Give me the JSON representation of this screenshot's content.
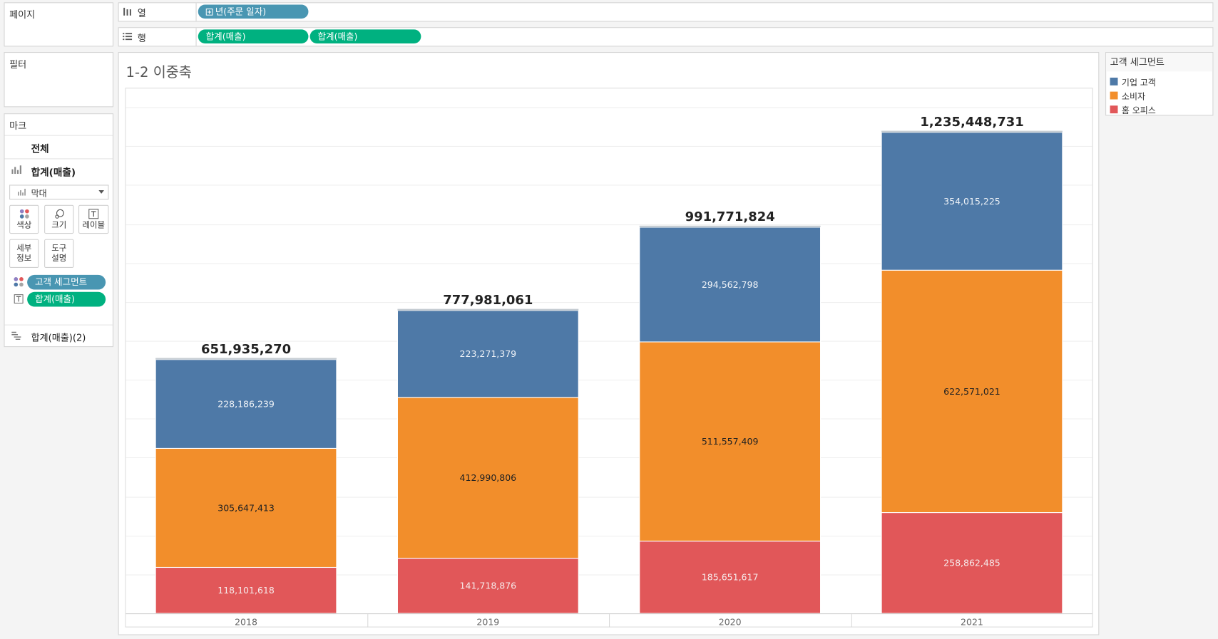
{
  "shelves": {
    "columns": {
      "label": "열",
      "icon": "columns-icon",
      "pills": [
        {
          "label": "년(주문 일자)",
          "icon": "plus-box-icon",
          "color": "#4996b2"
        }
      ]
    },
    "rows": {
      "label": "행",
      "icon": "rows-icon",
      "pills": [
        {
          "label": "합계(매출)",
          "color": "#00b180"
        },
        {
          "label": "합계(매출)",
          "color": "#00b180"
        }
      ]
    }
  },
  "pages_card": {
    "title": "페이지"
  },
  "filters_card": {
    "title": "필터"
  },
  "marks_card": {
    "title": "마크",
    "all_tab": "전체",
    "measure_tab": "합계(매출)",
    "mark_type": "막대",
    "buttons": [
      {
        "label": "색상",
        "icon": "color-icon"
      },
      {
        "label": "크기",
        "icon": "size-icon"
      },
      {
        "label": "레이블",
        "icon": "label-icon"
      },
      {
        "label": "세부 정보"
      },
      {
        "label": "도구 설명"
      }
    ],
    "fields": [
      {
        "label": "고객 세그먼트",
        "icon": "color-icon",
        "color": "#4996b2"
      },
      {
        "label": "합계(매출)",
        "icon": "label-icon",
        "color": "#00b180"
      }
    ],
    "second_measure": "합계(매출)(2)"
  },
  "legend": {
    "title": "고객 세그먼트",
    "placement": "right"
  },
  "chart_data": {
    "type": "bar",
    "stacked": true,
    "title": "1-2 이중축",
    "categories": [
      "2018",
      "2019",
      "2020",
      "2021"
    ],
    "series": [
      {
        "name": "기업 고객",
        "color": "#4e79a7",
        "label_color": "#eef2f7",
        "values": [
          228186239,
          223271379,
          294562798,
          354015225
        ],
        "labels": [
          "228,186,239",
          "223,271,379",
          "294,562,798",
          "354,015,225"
        ]
      },
      {
        "name": "소비자",
        "color": "#f28e2b",
        "label_color": "#222222",
        "values": [
          305647413,
          412990806,
          511557409,
          622571021
        ],
        "labels": [
          "305,647,413",
          "412,990,806",
          "511,557,409",
          "622,571,021"
        ]
      },
      {
        "name": "홈 오피스",
        "color": "#e15759",
        "label_color": "#f6eaea",
        "values": [
          118101618,
          141718876,
          185651617,
          258862485
        ],
        "labels": [
          "118,101,618",
          "141,718,876",
          "185,651,617",
          "258,862,485"
        ]
      }
    ],
    "totals": {
      "values": [
        651935270,
        777981061,
        991771824,
        1235448731
      ],
      "labels": [
        "651,935,270",
        "777,981,061",
        "991,771,824",
        "1,235,448,731"
      ],
      "color": "#c5ccd2"
    },
    "xlabel": "",
    "ylabel": "",
    "ylim": [
      0,
      1350000000
    ],
    "grid": true,
    "legend": "right"
  }
}
